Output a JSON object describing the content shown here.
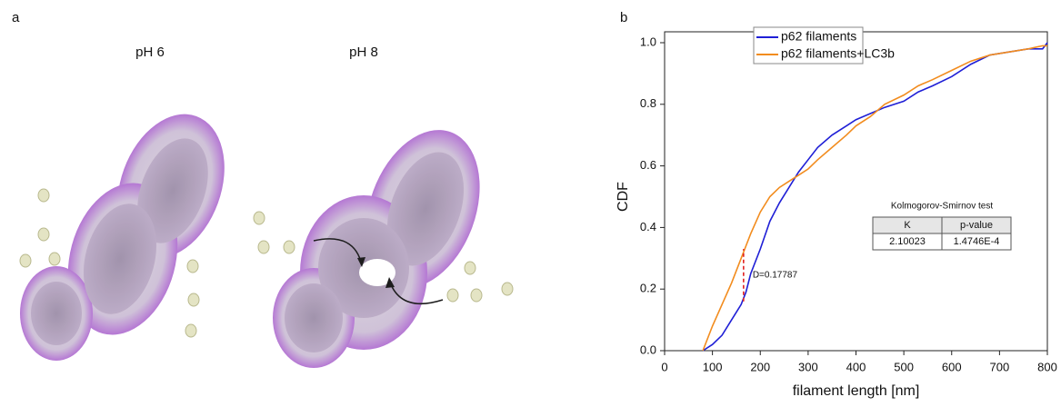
{
  "panel_a": {
    "label": "a",
    "titles": [
      "pH 6",
      "pH 8"
    ]
  },
  "panel_b": {
    "label": "b"
  },
  "chart_data": {
    "type": "line",
    "xlabel": "filament length [nm]",
    "ylabel": "CDF",
    "x": [
      80,
      100,
      120,
      140,
      160,
      170,
      180,
      200,
      220,
      240,
      260,
      280,
      300,
      320,
      350,
      380,
      400,
      430,
      460,
      500,
      530,
      560,
      600,
      640,
      680,
      720,
      760,
      790,
      800
    ],
    "series": [
      {
        "name": "p62 filaments",
        "color": "#1f1fd6",
        "values": [
          0,
          0.02,
          0.05,
          0.1,
          0.15,
          0.19,
          0.25,
          0.33,
          0.42,
          0.48,
          0.53,
          0.58,
          0.62,
          0.66,
          0.7,
          0.73,
          0.75,
          0.77,
          0.79,
          0.81,
          0.84,
          0.86,
          0.89,
          0.93,
          0.96,
          0.97,
          0.98,
          0.98,
          1.0
        ]
      },
      {
        "name": "p62 filaments+LC3b",
        "color": "#f28c1e",
        "values": [
          0,
          0.08,
          0.15,
          0.22,
          0.3,
          0.34,
          0.38,
          0.45,
          0.5,
          0.53,
          0.55,
          0.57,
          0.59,
          0.62,
          0.66,
          0.7,
          0.73,
          0.76,
          0.8,
          0.83,
          0.86,
          0.88,
          0.91,
          0.94,
          0.96,
          0.97,
          0.98,
          0.99,
          0.99
        ]
      }
    ],
    "xlim": [
      0,
      800
    ],
    "xticks": [
      0,
      100,
      200,
      300,
      400,
      500,
      600,
      700,
      800
    ],
    "ylim": [
      0,
      1
    ],
    "yticks": [
      {
        "value": 0,
        "label": "0.0"
      },
      0.2,
      0.4,
      0.6,
      0.8,
      {
        "value": 1,
        "label": "1.0"
      }
    ],
    "legend": "top",
    "annotation": {
      "text": "D=0.17787",
      "x": 165,
      "y_from": 0.16,
      "y_to": 0.33,
      "color": "#e02020"
    },
    "inset_table": {
      "title": "Kolmogorov-Smirnov test",
      "header": [
        "K",
        "p-value"
      ],
      "row": [
        "2.10023",
        "1.4746E-4"
      ]
    }
  }
}
